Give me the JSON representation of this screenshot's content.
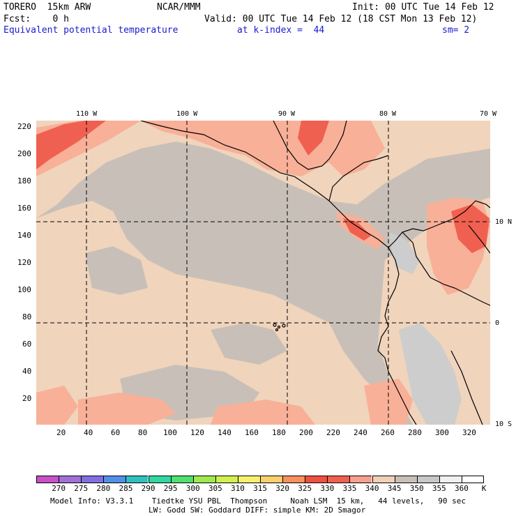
{
  "header": {
    "model": "TORERO  15km ARW",
    "center": "NCAR/MMM",
    "init": "Init: 00 UTC Tue 14 Feb 12",
    "fcst": "Fcst:    0 h",
    "valid": "Valid: 00 UTC Tue 14 Feb 12 (18 CST Mon 13 Feb 12)",
    "field": "Equivalent potential temperature",
    "level": "at k-index =  44",
    "smooth": "sm= 2"
  },
  "map": {
    "lon_labels": [
      "110 W",
      "100 W",
      "90 W",
      "80 W",
      "70 W"
    ],
    "lat_labels": [
      "10 N",
      "0",
      "10 S"
    ],
    "y_ticks": [
      "220",
      "200",
      "180",
      "160",
      "140",
      "120",
      "100",
      "80",
      "60",
      "40",
      "20"
    ],
    "x_ticks": [
      "20",
      "40",
      "60",
      "80",
      "100",
      "120",
      "140",
      "160",
      "180",
      "200",
      "220",
      "240",
      "260",
      "280",
      "300",
      "320"
    ],
    "colors": {
      "ocean": "#c8c0b8",
      "warm": "#f0d4bc",
      "warmer": "#f8b098",
      "hot": "#f06050",
      "cool": "#c8c8c8",
      "border": "#000000"
    }
  },
  "colorbar": {
    "labels": [
      "270",
      "275",
      "280",
      "285",
      "290",
      "295",
      "300",
      "305",
      "310",
      "315",
      "320",
      "325",
      "330",
      "335",
      "340",
      "345",
      "350",
      "355",
      "360",
      "K"
    ],
    "colors": [
      "#c850c8",
      "#a070d8",
      "#8070e0",
      "#5090e8",
      "#30c0c0",
      "#30d8a0",
      "#50e070",
      "#a0e850",
      "#d0f050",
      "#f8f070",
      "#f8d070",
      "#f89060",
      "#f05040",
      "#f06050",
      "#f8a090",
      "#f0d0b8",
      "#c8c0b8",
      "#c8c8c8",
      "#f0f0f0",
      "#ffffff"
    ]
  },
  "footer": {
    "line1": "Model Info: V3.3.1    Tiedtke YSU PBL  Thompson     Noah LSM  15 km,   44 levels,   90 sec",
    "line2": "LW: Godd SW: Goddard DIFF: simple KM: 2D Smagor"
  }
}
